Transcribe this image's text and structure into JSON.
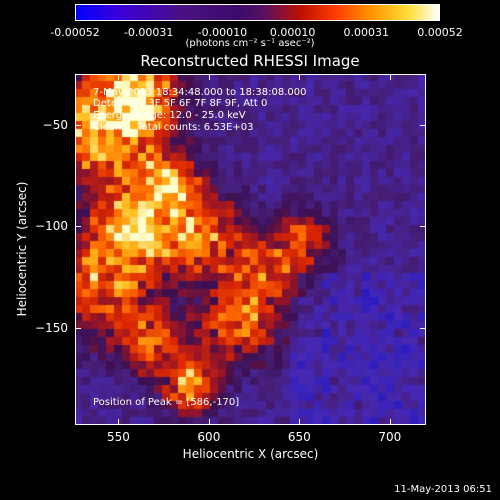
{
  "colorbar": {
    "ticks": [
      "-0.00052",
      "-0.00031",
      "-0.00010",
      "0.00010",
      "0.00031",
      "0.00052"
    ],
    "unit": "(photons cm⁻² s⁻¹ asec⁻²)",
    "range": [
      -0.00052,
      0.00052
    ]
  },
  "title": "Reconstructed RHESSI Image",
  "info": {
    "time": "7-May-2013 18:34:48.000 to 18:38:08.000",
    "detectors": "Detectors: 3F 5F 6F 7F 8F 9F, Att 0",
    "energy": "Energy Range: 12.0 - 25.0 keV",
    "clean": "Clean     Total counts: 6.53E+03"
  },
  "peak": "Position of Peak = [586,-170]",
  "timestamp": "11-May-2013 06:51",
  "chart_data": {
    "type": "heatmap",
    "title": "Reconstructed RHESSI Image",
    "xlabel": "Heliocentric X (arcsec)",
    "ylabel": "Heliocentric Y (arcsec)",
    "xlim": [
      526,
      720
    ],
    "ylim": [
      -198,
      -25
    ],
    "xticks": [
      550,
      600,
      650,
      700
    ],
    "yticks": [
      -50,
      -100,
      -150
    ],
    "xtick_labels": [
      "550",
      "600",
      "650",
      "700"
    ],
    "ytick_labels": [
      "−50",
      "−100",
      "−150"
    ],
    "peak_position": [
      586,
      -170
    ],
    "grid": false
  }
}
